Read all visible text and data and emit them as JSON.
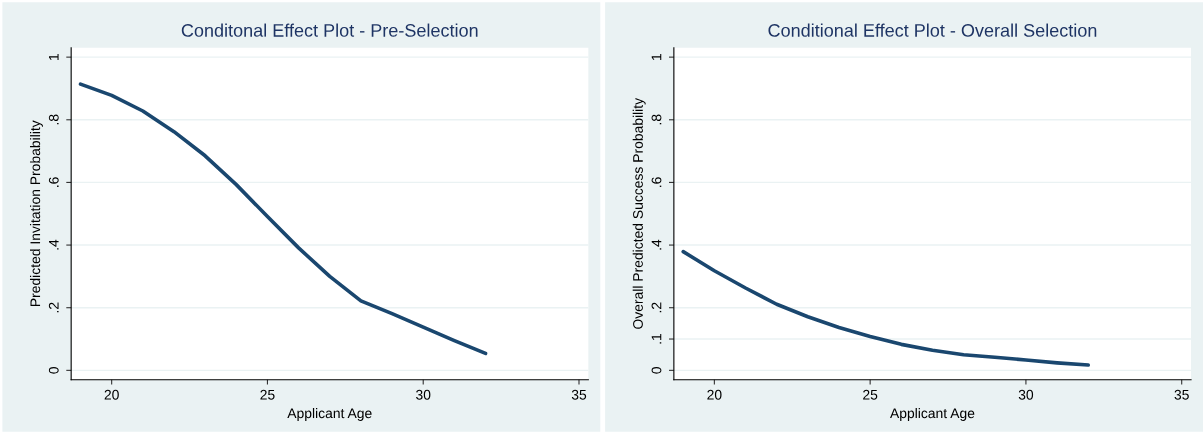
{
  "chart_data": [
    {
      "type": "line",
      "title": "Conditonal Effect Plot - Pre-Selection",
      "xlabel": "Applicant Age",
      "ylabel": "Predicted Invitation Probability",
      "x": [
        19,
        20,
        21,
        22,
        23,
        24,
        25,
        26,
        27,
        28,
        29,
        30,
        31,
        32
      ],
      "series": [
        {
          "color": "#1a476f",
          "values": [
            0.914,
            0.878,
            0.828,
            0.762,
            0.685,
            0.593,
            0.491,
            0.391,
            0.3,
            0.222,
            0.181,
            0.138,
            0.095,
            0.054
          ]
        }
      ],
      "xlim": [
        18.7,
        35.3
      ],
      "xticks": [
        20,
        25,
        30,
        35
      ],
      "ylim": [
        -0.03,
        1.03
      ],
      "yticks": [
        0,
        {
          "value": 0.2,
          "label": ".2"
        },
        {
          "value": 0.4,
          "label": ".4"
        },
        {
          "value": 0.6,
          "label": ".6"
        },
        {
          "value": 0.8,
          "label": ".8"
        },
        1
      ],
      "grid": "y"
    },
    {
      "type": "line",
      "title": "Conditional Effect Plot - Overall Selection",
      "xlabel": "Applicant Age",
      "ylabel": "Overall Predicted Success Probability",
      "x": [
        19,
        20,
        21,
        22,
        23,
        24,
        25,
        26,
        27,
        28,
        29,
        30,
        31,
        32
      ],
      "series": [
        {
          "color": "#1a476f",
          "values": [
            0.379,
            0.318,
            0.263,
            0.211,
            0.171,
            0.137,
            0.108,
            0.083,
            0.064,
            0.05,
            0.042,
            0.033,
            0.024,
            0.017
          ]
        }
      ],
      "xlim": [
        18.7,
        35.3
      ],
      "xticks": [
        20,
        25,
        30,
        35
      ],
      "ylim": [
        -0.03,
        1.03
      ],
      "yticks": [
        0,
        {
          "value": 0.1,
          "label": ".1"
        },
        {
          "value": 0.2,
          "label": ".2"
        },
        {
          "value": 0.4,
          "label": ".4"
        },
        {
          "value": 0.6,
          "label": ".6"
        },
        {
          "value": 0.8,
          "label": ".8"
        },
        1
      ],
      "grid": "y"
    }
  ]
}
